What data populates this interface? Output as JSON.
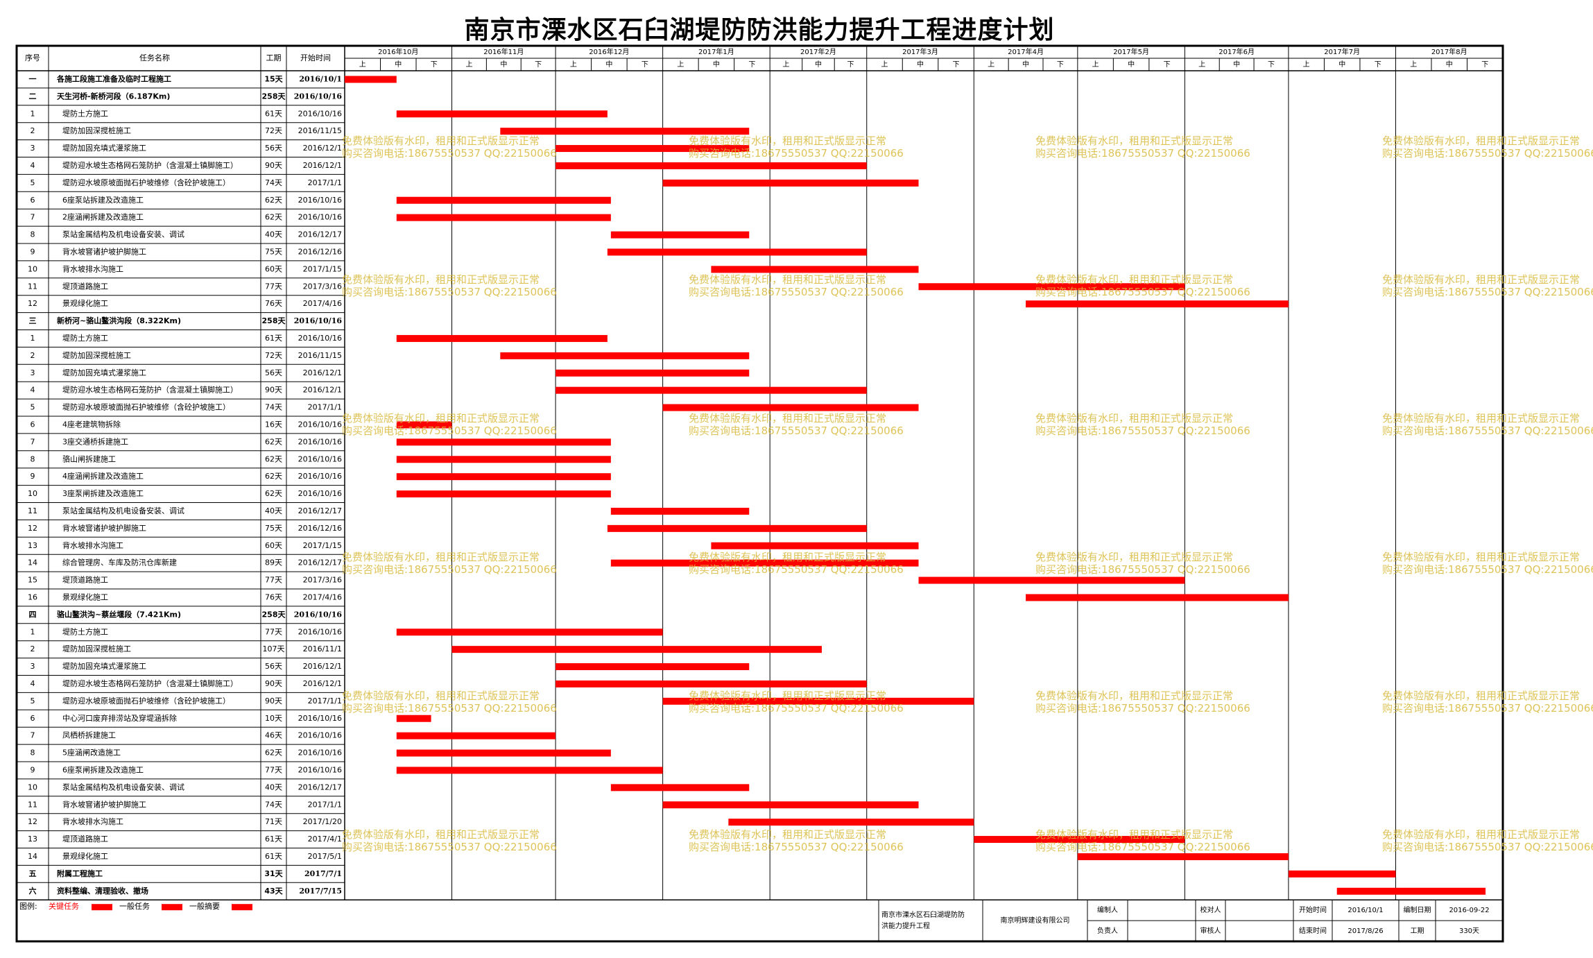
{
  "title": "南京市溧水区石臼湖堤防防洪能力提升工程进度计划",
  "watermark": [
    "免费体验版有水印，租用和正式版显示正常",
    "购买咨询电话:18675550537 QQ:22150066"
  ],
  "headers": {
    "seq": "序号",
    "name": "任务名称",
    "dur": "工期",
    "start": "开始时间"
  },
  "thirds": [
    "上",
    "中",
    "下"
  ],
  "colors": {
    "bar": "#ff0000",
    "watermark": "#d8b93a",
    "grid": "#000000"
  },
  "chart_data": {
    "type": "gantt",
    "title": "南京市溧水区石臼湖堤防防洪能力提升工程进度计划",
    "months": [
      "2016年10月",
      "2016年11月",
      "2016年12月",
      "2017年1月",
      "2017年2月",
      "2017年3月",
      "2017年4月",
      "2017年5月",
      "2017年6月",
      "2017年7月",
      "2017年8月"
    ],
    "tasks": [
      {
        "seq": "一",
        "name": "各施工段施工准备及临时工程施工",
        "duration": "15天",
        "start": "2016/10/1",
        "heading": true,
        "bar": true
      },
      {
        "seq": "二",
        "name": "天生河桥-新桥河段（6.187Km)",
        "duration": "258天",
        "start": "2016/10/16",
        "heading": true,
        "bar": false
      },
      {
        "seq": "1",
        "name": "堤防土方施工",
        "duration": "61天",
        "start": "2016/10/16",
        "bar": true
      },
      {
        "seq": "2",
        "name": "堤防加固深搅桩施工",
        "duration": "72天",
        "start": "2016/11/15",
        "bar": true
      },
      {
        "seq": "3",
        "name": "堤防加固充填式灌浆施工",
        "duration": "56天",
        "start": "2016/12/1",
        "bar": true
      },
      {
        "seq": "4",
        "name": "堤防迎水坡生态格网石笼防护（含混凝土镇脚施工）",
        "duration": "90天",
        "start": "2016/12/1",
        "bar": true
      },
      {
        "seq": "5",
        "name": "堤防迎水坡原坡面抛石护坡维修（含砼护坡施工）",
        "duration": "74天",
        "start": "2017/1/1",
        "bar": true
      },
      {
        "seq": "6",
        "name": "6座泵站拆建及改造施工",
        "duration": "62天",
        "start": "2016/10/16",
        "bar": true
      },
      {
        "seq": "7",
        "name": "2座涵闸拆建及改造施工",
        "duration": "62天",
        "start": "2016/10/16",
        "bar": true
      },
      {
        "seq": "8",
        "name": "泵站金属结构及机电设备安装、调试",
        "duration": "40天",
        "start": "2016/12/17",
        "bar": true
      },
      {
        "seq": "9",
        "name": "背水坡窨诸护坡护脚施工",
        "duration": "75天",
        "start": "2016/12/16",
        "bar": true
      },
      {
        "seq": "10",
        "name": "背水坡排水沟施工",
        "duration": "60天",
        "start": "2017/1/15",
        "bar": true
      },
      {
        "seq": "11",
        "name": "堤顶道路施工",
        "duration": "77天",
        "start": "2017/3/16",
        "bar": true
      },
      {
        "seq": "12",
        "name": "景观绿化施工",
        "duration": "76天",
        "start": "2017/4/16",
        "bar": true
      },
      {
        "seq": "三",
        "name": "新桥河~骆山鳌洪沟段（8.322Km)",
        "duration": "258天",
        "start": "2016/10/16",
        "heading": true,
        "bar": false
      },
      {
        "seq": "1",
        "name": "堤防土方施工",
        "duration": "61天",
        "start": "2016/10/16",
        "bar": true
      },
      {
        "seq": "2",
        "name": "堤防加固深搅桩施工",
        "duration": "72天",
        "start": "2016/11/15",
        "bar": true
      },
      {
        "seq": "3",
        "name": "堤防加固充填式灌浆施工",
        "duration": "56天",
        "start": "2016/12/1",
        "bar": true
      },
      {
        "seq": "4",
        "name": "堤防迎水坡生态格网石笼防护（含混凝土镇脚施工）",
        "duration": "90天",
        "start": "2016/12/1",
        "bar": true
      },
      {
        "seq": "5",
        "name": "堤防迎水坡原坡面抛石护坡维修（含砼护坡施工）",
        "duration": "74天",
        "start": "2017/1/1",
        "bar": true
      },
      {
        "seq": "6",
        "name": "4座老建筑物拆除",
        "duration": "16天",
        "start": "2016/10/16",
        "bar": true
      },
      {
        "seq": "7",
        "name": "3座交通桥拆建施工",
        "duration": "62天",
        "start": "2016/10/16",
        "bar": true
      },
      {
        "seq": "8",
        "name": "骆山闸拆建施工",
        "duration": "62天",
        "start": "2016/10/16",
        "bar": true
      },
      {
        "seq": "9",
        "name": "4座涵闸拆建及改造施工",
        "duration": "62天",
        "start": "2016/10/16",
        "bar": true
      },
      {
        "seq": "10",
        "name": "3座泵闸拆建及改造施工",
        "duration": "62天",
        "start": "2016/10/16",
        "bar": true
      },
      {
        "seq": "11",
        "name": "泵站金属结构及机电设备安装、调试",
        "duration": "40天",
        "start": "2016/12/17",
        "bar": true
      },
      {
        "seq": "12",
        "name": "背水坡窨诸护坡护脚施工",
        "duration": "75天",
        "start": "2016/12/16",
        "bar": true
      },
      {
        "seq": "13",
        "name": "背水坡排水沟施工",
        "duration": "60天",
        "start": "2017/1/15",
        "bar": true
      },
      {
        "seq": "14",
        "name": "综合管理房、车库及防汛仓库新建",
        "duration": "89天",
        "start": "2016/12/17",
        "bar": true
      },
      {
        "seq": "15",
        "name": "堤顶道路施工",
        "duration": "77天",
        "start": "2017/3/16",
        "bar": true
      },
      {
        "seq": "16",
        "name": "景观绿化施工",
        "duration": "76天",
        "start": "2017/4/16",
        "bar": true
      },
      {
        "seq": "四",
        "name": "骆山鳌洪沟~蔡丝堰段（7.421Km)",
        "duration": "258天",
        "start": "2016/10/16",
        "heading": true,
        "bar": false
      },
      {
        "seq": "1",
        "name": "堤防土方施工",
        "duration": "77天",
        "start": "2016/10/16",
        "bar": true
      },
      {
        "seq": "2",
        "name": "堤防加固深搅桩施工",
        "duration": "107天",
        "start": "2016/11/1",
        "bar": true
      },
      {
        "seq": "3",
        "name": "堤防加固充填式灌浆施工",
        "duration": "56天",
        "start": "2016/12/1",
        "bar": true
      },
      {
        "seq": "4",
        "name": "堤防迎水坡生态格网石笼防护（含混凝土镇脚施工）",
        "duration": "90天",
        "start": "2016/12/1",
        "bar": true
      },
      {
        "seq": "5",
        "name": "堤防迎水坡原坡面抛石护坡维修（含砼护坡施工）",
        "duration": "90天",
        "start": "2017/1/1",
        "bar": true
      },
      {
        "seq": "6",
        "name": "中心河口废弃排涝站及穿堤涵拆除",
        "duration": "10天",
        "start": "2016/10/16",
        "bar": true
      },
      {
        "seq": "7",
        "name": "凤栖桥拆建施工",
        "duration": "46天",
        "start": "2016/10/16",
        "bar": true
      },
      {
        "seq": "8",
        "name": "5座涵闸改造施工",
        "duration": "62天",
        "start": "2016/10/16",
        "bar": true
      },
      {
        "seq": "9",
        "name": "6座泵闸拆建及改造施工",
        "duration": "77天",
        "start": "2016/10/16",
        "bar": true
      },
      {
        "seq": "10",
        "name": "泵站金属结构及机电设备安装、调试",
        "duration": "40天",
        "start": "2016/12/17",
        "bar": true
      },
      {
        "seq": "11",
        "name": "背水坡窨诸护坡护脚施工",
        "duration": "74天",
        "start": "2017/1/1",
        "bar": true
      },
      {
        "seq": "12",
        "name": "背水坡排水沟施工",
        "duration": "71天",
        "start": "2017/1/20",
        "bar": true
      },
      {
        "seq": "13",
        "name": "堤顶道路施工",
        "duration": "61天",
        "start": "2017/4/1",
        "bar": true
      },
      {
        "seq": "14",
        "name": "景观绿化施工",
        "duration": "61天",
        "start": "2017/5/1",
        "bar": true
      },
      {
        "seq": "五",
        "name": "附属工程施工",
        "duration": "31天",
        "start": "2017/7/1",
        "heading": true,
        "bar": true
      },
      {
        "seq": "六",
        "name": "资料整编、清理验收、撤场",
        "duration": "43天",
        "start": "2017/7/15",
        "heading": true,
        "bar": true
      }
    ]
  },
  "legend": {
    "label": "图例:",
    "items": [
      "关键任务",
      "一般任务",
      "一般摘要"
    ]
  },
  "footer": {
    "project": "南京市溧水区石臼湖堤防防洪能力提升工程",
    "company": "南京明辉建设有限公司",
    "compiler_label": "编制人",
    "compiler": "",
    "checker_label": "校对人",
    "checker": "",
    "manager_label": "负责人",
    "manager": "",
    "reviewer_label": "审核人",
    "reviewer": "",
    "start_label": "开始时间",
    "start": "2016/10/1",
    "compile_date_label": "编制日期",
    "compile_date": "2016-09-22",
    "end_label": "结束时间",
    "end": "2017/8/26",
    "duration_label": "工期",
    "duration": "330天"
  }
}
